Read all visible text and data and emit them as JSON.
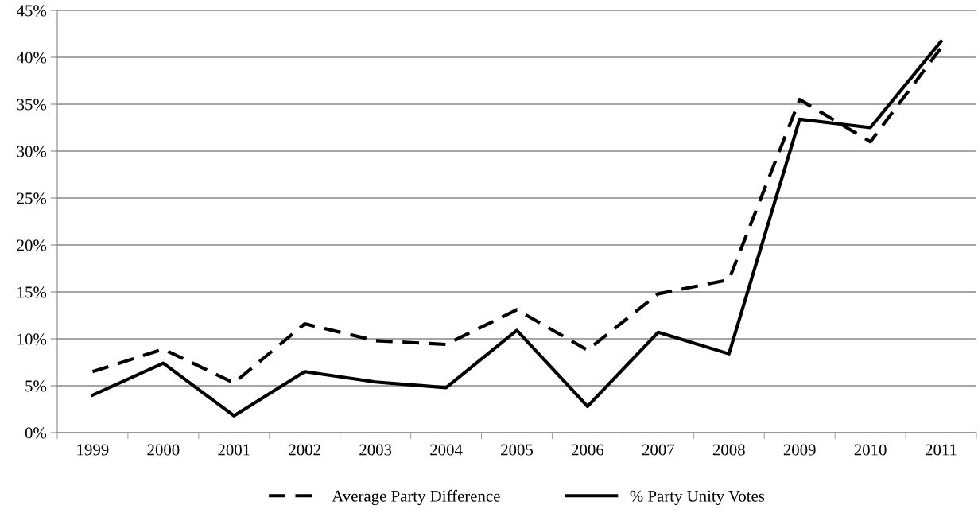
{
  "chart_data": {
    "type": "line",
    "categories": [
      "1999",
      "2000",
      "2001",
      "2002",
      "2003",
      "2004",
      "2005",
      "2006",
      "2007",
      "2008",
      "2009",
      "2010",
      "2011"
    ],
    "series": [
      {
        "name": "Average Party Difference",
        "color": "#000000",
        "line_style": "dashed",
        "values": [
          6.5,
          8.9,
          5.3,
          11.6,
          9.8,
          9.4,
          13.1,
          8.8,
          14.8,
          16.3,
          35.5,
          31.0,
          41.0
        ]
      },
      {
        "name": "% Party Unity Votes",
        "color": "#000000",
        "line_style": "solid",
        "values": [
          4.0,
          7.4,
          1.8,
          6.5,
          5.4,
          4.8,
          10.9,
          2.8,
          10.7,
          8.4,
          33.4,
          32.5,
          41.7
        ]
      }
    ],
    "ylim": [
      0,
      45
    ],
    "yticks": [
      {
        "value": 0,
        "label": "0%"
      },
      {
        "value": 5,
        "label": "5%"
      },
      {
        "value": 10,
        "label": "10%"
      },
      {
        "value": 15,
        "label": "15%"
      },
      {
        "value": 20,
        "label": "20%"
      },
      {
        "value": 25,
        "label": "25%"
      },
      {
        "value": 30,
        "label": "30%"
      },
      {
        "value": 35,
        "label": "35%"
      },
      {
        "value": 40,
        "label": "40%"
      },
      {
        "value": 45,
        "label": "45%"
      }
    ],
    "grid": "y",
    "legend": "bottom",
    "marker": "none"
  }
}
